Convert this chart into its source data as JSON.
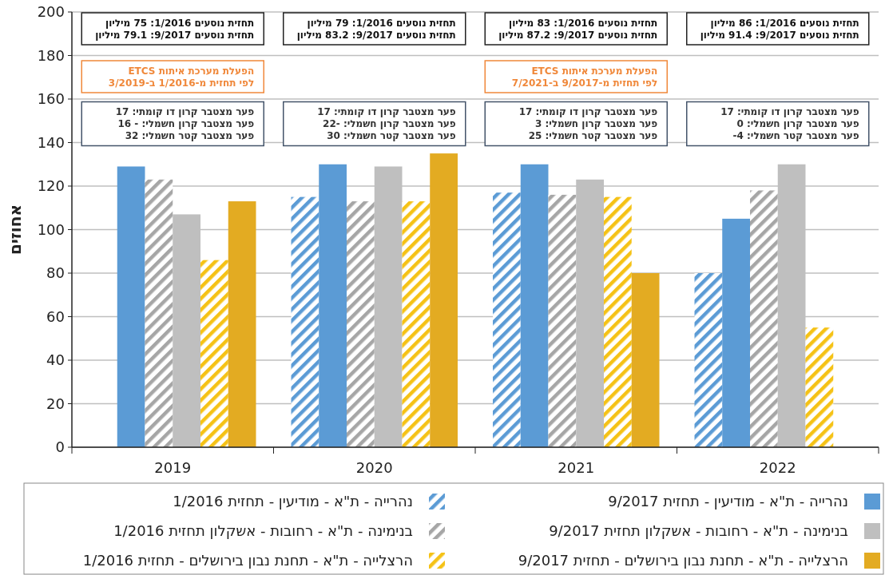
{
  "chart_data": {
    "type": "bar",
    "ylabel": "אחוזים",
    "categories": [
      "2019",
      "2020",
      "2021",
      "2022"
    ],
    "series": [
      {
        "name": "נהרייה - ת\"א - מודיעין - תחזית 1/2016",
        "color": "#5b9bd5",
        "values": [
          null,
          115,
          117,
          80
        ]
      },
      {
        "name": "נהרייה - ת\"א - מודיעין - תחזית 9/2017",
        "color": "#5b9bd5",
        "values": [
          129,
          130,
          130,
          105
        ]
      },
      {
        "name": "בנימינה - ת\"א - רחובות - אשקלון תחזית 1/2016",
        "color": "#a6a6a6",
        "values": [
          123,
          113,
          116,
          118
        ]
      },
      {
        "name": "בנימינה - ת\"א - רחובות - אשקלון תחזית 9/2017",
        "color": "#bfbfbf",
        "values": [
          107,
          129,
          123,
          130
        ]
      },
      {
        "name": "הרצלייה - ת\"א - תחנת נבון בירושלים - תחזית 1/2016",
        "color": "#f5c216",
        "values": [
          86,
          113,
          115,
          55
        ]
      },
      {
        "name": "הרצלייה - ת\"א - תחנת נבון בירושלים - תחזית 9/2017",
        "color": "#e3ab22",
        "values": [
          113,
          135,
          80,
          null
        ]
      }
    ],
    "ylim": [
      0,
      200
    ],
    "yticks": [
      0,
      20,
      40,
      60,
      80,
      100,
      120,
      140,
      160,
      180,
      200
    ],
    "grid": "y",
    "legend": "bottom",
    "annotations": [
      "תחזית נוסעים 1/2016: 75 מיליון\nתחזית נוסעים 9/2017: 79.1 מיליון",
      "תחזית נוסעים 1/2016: 79 מיליון\nתחזית נוסעים 9/2017: 83.2 מיליון",
      "תחזית נוסעים 1/2016: 83 מיליון\nתחזית נוסעים 9/2017: 87.2 מיליון",
      "תחזית נוסעים 1/2016: 86 מיליון\nתחזית נוסעים 9/2017: 91.4 מיליון",
      "הפעלת מערכת איתות ETCS\nלפי תחזית מ-1/2016 ב-3/2019",
      "הפעלת מערכת איתות ETCS\nלפי תחזית מ-9/2017 ב-7/2021",
      "פער מצטבר קרון דו קומתי: 17\nפער מצטבר קרון חשמלי: - 16\nפער מצטבר קטר חשמלי: 32",
      "פער מצטבר קרון דו קומתי: 17\nפער מצטבר קרון חשמלי:  -22\nפער מצטבר קטר חשמלי: 30",
      "פער מצטבר קרון דו קומתי: 17\nפער מצטבר קרון חשמלי: 3\nפער מצטבר קטר חשמלי: 25",
      "פער מצטבר קרון דו קומתי: 17\nפער מצטבר קרון חשמלי: 0\nפער מצטבר קטר חשמלי: 4-"
    ]
  }
}
